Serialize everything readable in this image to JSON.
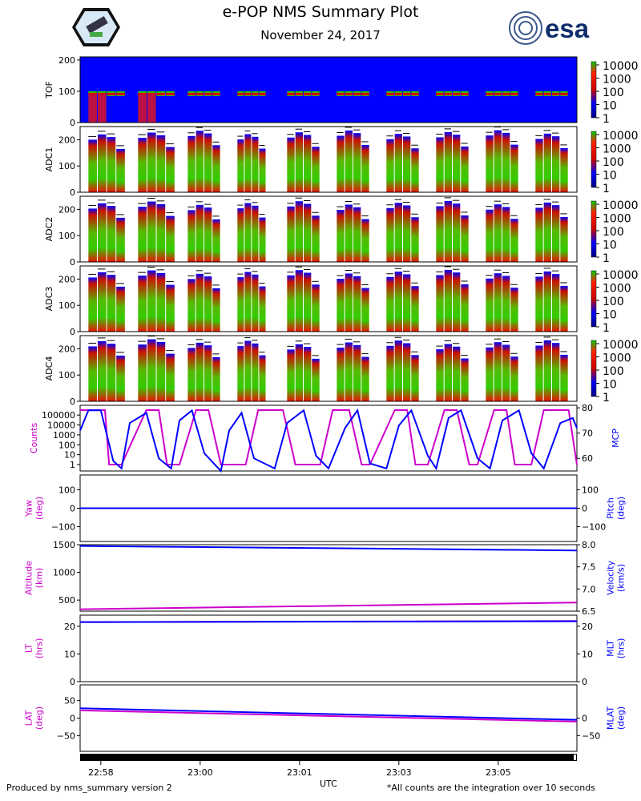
{
  "header": {
    "title": "e-POP NMS Summary Plot",
    "date": "November 24, 2017",
    "left_logo": "epop-mission-patch",
    "right_logo_text": "esa"
  },
  "footer": {
    "left": "Produced by nms_summary version 2",
    "right": "*All counts are the integration over 10 seconds",
    "xlabel": "UTC"
  },
  "colors": {
    "magenta": "#cc00cc",
    "blue": "#0000ff",
    "green": "#22cc00",
    "red": "#ff0000"
  },
  "chart_data": [
    {
      "type": "heatmap",
      "name": "TOF",
      "ylabel": "TOF",
      "ylim": [
        0,
        210
      ],
      "yticks": [
        0,
        100,
        200
      ],
      "colorbar": {
        "scale": "log",
        "labels": [
          "10000",
          "1000",
          "100",
          "10",
          "1"
        ]
      }
    },
    {
      "type": "heatmap",
      "name": "ADC1",
      "ylabel": "ADC1",
      "ylim": [
        0,
        250
      ],
      "yticks": [
        0,
        100,
        200
      ],
      "colorbar": {
        "scale": "log",
        "labels": [
          "10000",
          "1000",
          "100",
          "10",
          "1"
        ]
      }
    },
    {
      "type": "heatmap",
      "name": "ADC2",
      "ylabel": "ADC2",
      "ylim": [
        0,
        250
      ],
      "yticks": [
        0,
        100,
        200
      ],
      "colorbar": {
        "scale": "log",
        "labels": [
          "10000",
          "1000",
          "100",
          "10",
          "1"
        ]
      }
    },
    {
      "type": "heatmap",
      "name": "ADC3",
      "ylabel": "ADC3",
      "ylim": [
        0,
        250
      ],
      "yticks": [
        0,
        100,
        200
      ],
      "colorbar": {
        "scale": "log",
        "labels": [
          "10000",
          "1000",
          "100",
          "10",
          "1"
        ]
      }
    },
    {
      "type": "heatmap",
      "name": "ADC4",
      "ylabel": "ADC4",
      "ylim": [
        0,
        250
      ],
      "yticks": [
        0,
        100,
        200
      ],
      "colorbar": {
        "scale": "log",
        "labels": [
          "10000",
          "1000",
          "100",
          "10",
          "1"
        ]
      }
    },
    {
      "type": "line",
      "name": "Counts/MCP",
      "ylabel_left": "Counts",
      "ylabel_right": "MCP",
      "left_ticks": [
        "100000",
        "10000",
        "1000",
        "100",
        "10",
        "1"
      ],
      "right_ticks": [
        "80",
        "70",
        "60"
      ],
      "series": [
        {
          "name": "Counts",
          "color": "magenta",
          "x": [
            0,
            1.2,
            3,
            3.5,
            5,
            8,
            9.5,
            10.5,
            12,
            14,
            15.5,
            17,
            20,
            21.5,
            22.5,
            24.5,
            26,
            29,
            30.5,
            32.5,
            34,
            35,
            38,
            39.5,
            40.5,
            42,
            44,
            45.5,
            47,
            48,
            50,
            51.5,
            52.5,
            54.5,
            56,
            59,
            60
          ],
          "y": [
            5.5,
            5.5,
            5.5,
            0,
            0,
            5.5,
            5.5,
            0,
            0,
            5.5,
            5.5,
            0,
            0,
            5.5,
            5.5,
            5.5,
            0,
            0,
            5.5,
            5.5,
            0,
            0,
            5.5,
            5.5,
            0,
            0,
            5.5,
            5.5,
            0,
            0,
            5.5,
            5.5,
            0,
            0,
            5.5,
            5.5,
            0
          ]
        },
        {
          "name": "MCP",
          "color": "blue",
          "x": [
            0,
            1,
            2.5,
            4,
            5,
            6,
            8,
            9.5,
            11,
            12,
            13.5,
            15,
            17,
            18,
            19.5,
            21,
            23.5,
            25,
            27,
            28.5,
            30,
            32,
            33.5,
            35,
            37,
            38.5,
            40,
            42,
            43,
            44.5,
            46,
            48,
            49.5,
            51,
            53,
            54.5,
            56,
            58,
            59.5,
            60
          ],
          "y": [
            71,
            79,
            79,
            59,
            56,
            74,
            78,
            60,
            56,
            75,
            79,
            62,
            55,
            71,
            78,
            60,
            56,
            74,
            79,
            61,
            56,
            72,
            79,
            58,
            56,
            73,
            79,
            61,
            56,
            76,
            79,
            60,
            56,
            75,
            79,
            62,
            56,
            74,
            76,
            72
          ]
        }
      ]
    },
    {
      "type": "line",
      "name": "Yaw/Pitch",
      "ylabel_left": "Yaw\n(deg)",
      "ylabel_right": "Pitch\n(deg)",
      "ylim": [
        -180,
        180
      ],
      "yticks": [
        "100",
        "0",
        "−100"
      ],
      "series": [
        {
          "name": "Yaw",
          "color": "magenta",
          "x": [
            0,
            60
          ],
          "y": [
            0,
            0
          ]
        },
        {
          "name": "Pitch",
          "color": "blue",
          "x": [
            0,
            60
          ],
          "y": [
            0,
            0
          ]
        }
      ]
    },
    {
      "type": "line",
      "name": "Altitude/Velocity",
      "ylabel_left": "Altitude\n(km)",
      "ylabel_right": "Velocity\n(km/s)",
      "left_ticks": [
        "1500",
        "1000",
        "500"
      ],
      "right_ticks": [
        "8.0",
        "7.5",
        "7.0",
        "6.5"
      ],
      "series": [
        {
          "name": "Altitude",
          "color": "magenta",
          "x": [
            0,
            60
          ],
          "y": [
            335,
            455
          ]
        },
        {
          "name": "Velocity",
          "color": "blue",
          "x": [
            0,
            60
          ],
          "y": [
            7.97,
            7.87
          ]
        }
      ]
    },
    {
      "type": "line",
      "name": "LT/MLT",
      "ylabel_left": "LT\n(hrs)",
      "ylabel_right": "MLT\n(hrs)",
      "ylim": [
        0,
        24
      ],
      "yticks": [
        "20",
        "10",
        "0"
      ],
      "series": [
        {
          "name": "LT",
          "color": "magenta",
          "x": [
            0,
            60
          ],
          "y": [
            21.5,
            21.9
          ]
        },
        {
          "name": "MLT",
          "color": "blue",
          "x": [
            0,
            60
          ],
          "y": [
            21.5,
            21.8
          ]
        }
      ]
    },
    {
      "type": "line",
      "name": "LAT/MLAT",
      "ylabel_left": "LAT\n(deg)",
      "ylabel_right": "MLAT\n(deg)",
      "ylim": [
        -95,
        95
      ],
      "yticks": [
        "50",
        "0",
        "−50"
      ],
      "series": [
        {
          "name": "LAT",
          "color": "magenta",
          "x": [
            0,
            60
          ],
          "y": [
            22,
            -10
          ]
        },
        {
          "name": "MLAT",
          "color": "blue",
          "x": [
            0,
            60
          ],
          "y": [
            28,
            -5
          ]
        }
      ]
    }
  ],
  "x_axis": {
    "label": "UTC",
    "ticks": [
      "22:58",
      "23:00",
      "23:01",
      "23:03",
      "23:05"
    ]
  }
}
